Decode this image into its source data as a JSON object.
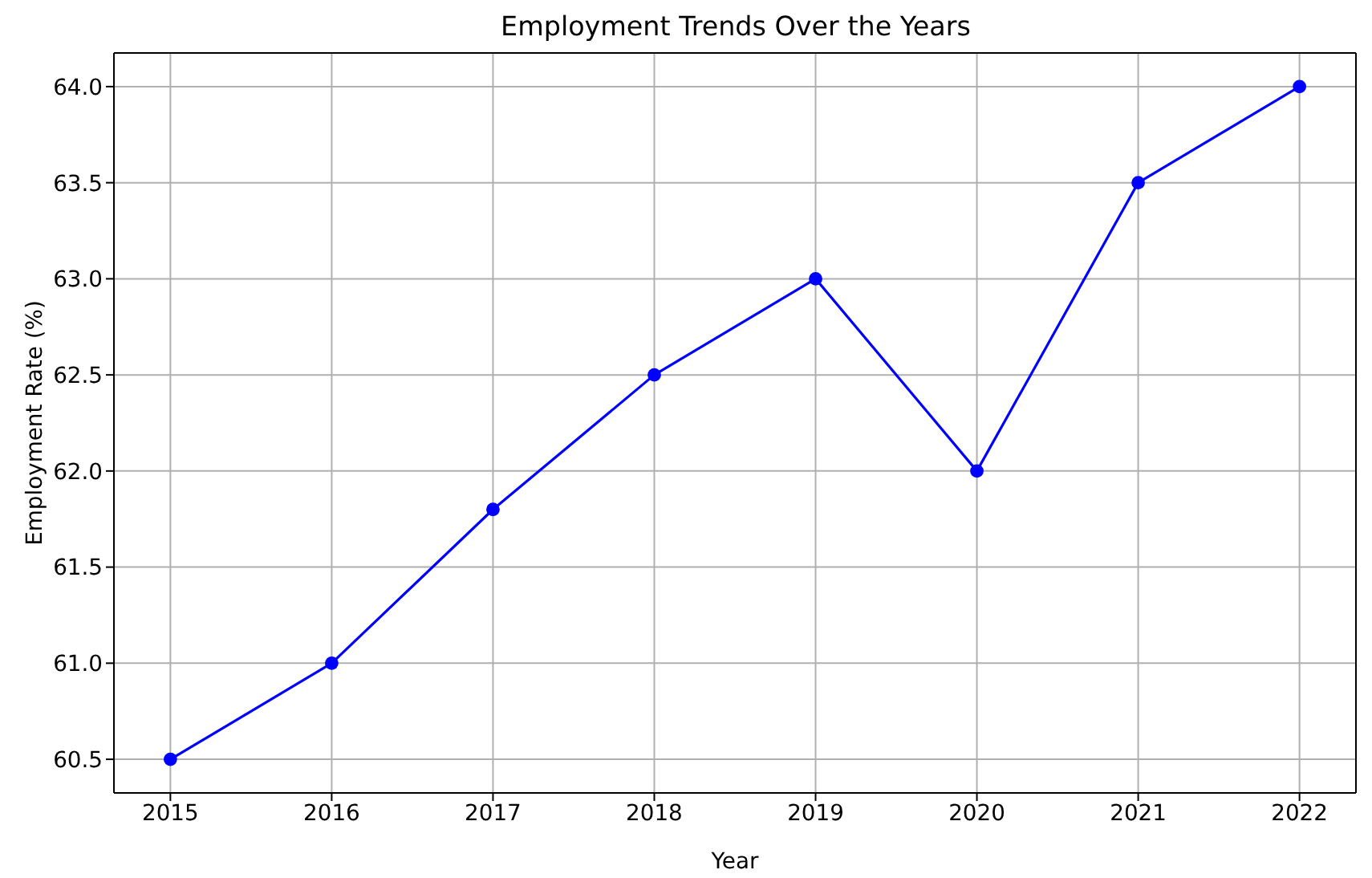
{
  "chart_data": {
    "type": "line",
    "title": "Employment Trends Over the Years",
    "xlabel": "Year",
    "ylabel": "Employment Rate (%)",
    "x": [
      2015,
      2016,
      2017,
      2018,
      2019,
      2020,
      2021,
      2022
    ],
    "values": [
      60.5,
      61.0,
      61.8,
      62.5,
      63.0,
      62.0,
      63.5,
      64.0
    ],
    "color": "#0000ff",
    "marker": "circle",
    "grid": true,
    "xlim": [
      2014.65,
      2022.35
    ],
    "xticks": [
      2015,
      2016,
      2017,
      2018,
      2019,
      2020,
      2021,
      2022
    ],
    "ylim": [
      60.325,
      64.175
    ],
    "yticks": [
      60.5,
      {
        "value": 61,
        "label": "61.0"
      },
      61.5,
      {
        "value": 62,
        "label": "62.0"
      },
      62.5,
      {
        "value": 63,
        "label": "63.0"
      },
      63.5,
      {
        "value": 64,
        "label": "64.0"
      }
    ]
  }
}
